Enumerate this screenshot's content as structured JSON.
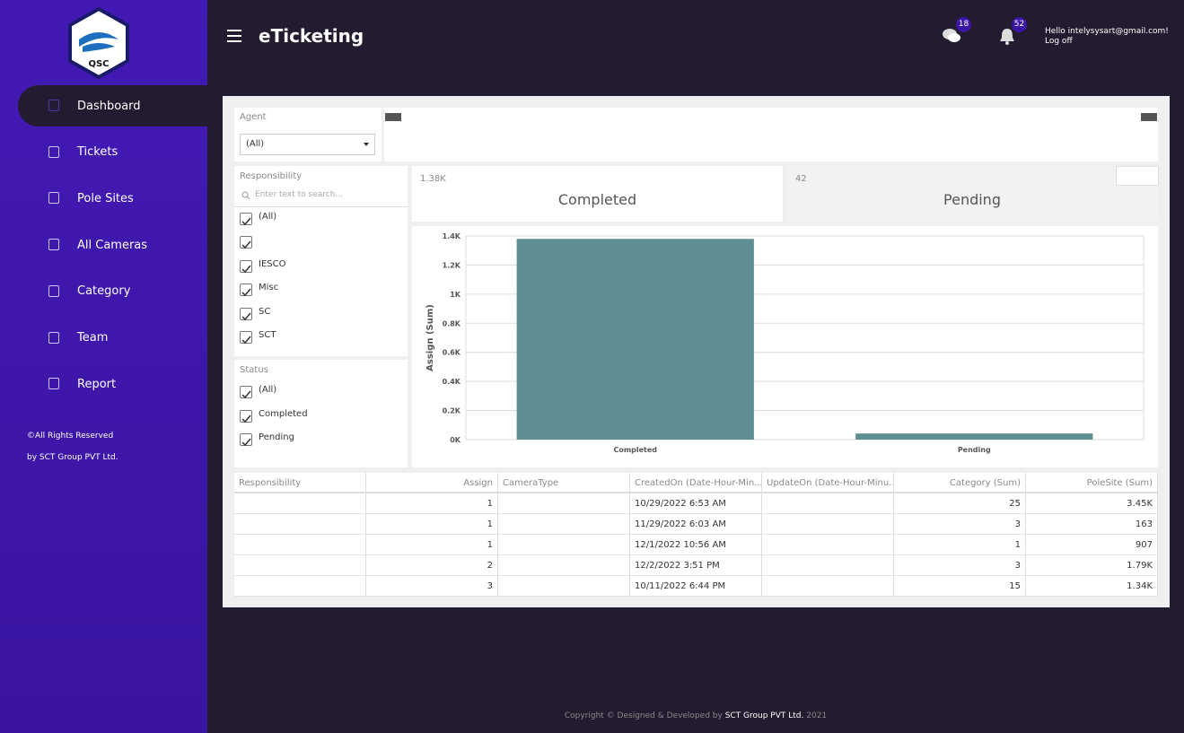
{
  "logo": "QSC",
  "sidebar": {
    "menu": [
      "Dashboard",
      "Tickets",
      "Pole Sites",
      "All Cameras",
      "Category",
      "Team",
      "Report"
    ],
    "footer": [
      "©All Rights Reserved",
      "by SCT Group PVT Ltd."
    ]
  },
  "header": {
    "title": "eTicketing",
    "messages_badge": 18,
    "notifications_badge": 52,
    "greeting": "Hello intelysysart@gmail.com!",
    "logout": "Log off"
  },
  "filters": {
    "agent": {
      "label": "Agent",
      "value": "(All)"
    },
    "responsibility": {
      "label": "Responsibility",
      "placeholder": "Enter text to search...",
      "options": [
        "(All)",
        null,
        "IESCO",
        "Misc",
        "SC",
        "SCT"
      ]
    },
    "status": {
      "label": "Status",
      "options": [
        "(All)",
        "Completed",
        "Pending"
      ]
    }
  },
  "cards": [
    {
      "value": "1.38K",
      "label": "Completed"
    },
    {
      "value": "42",
      "label": "Pending"
    }
  ],
  "chart_data": {
    "type": "bar",
    "y_label": "Assign (Sum)",
    "categories": [
      "Completed",
      "Pending"
    ],
    "values": [
      1380,
      42
    ],
    "color": "#5f8e92",
    "ylim": [
      0,
      1400
    ],
    "yticks": [
      {
        "value": 0,
        "label": "0K"
      },
      {
        "value": 200,
        "label": "0.2K"
      },
      {
        "value": 400,
        "label": "0.4K"
      },
      {
        "value": 600,
        "label": "0.6K"
      },
      {
        "value": 800,
        "label": "0.8K"
      },
      {
        "value": 1000,
        "label": "1K"
      },
      {
        "value": 1200,
        "label": "1.2K"
      },
      {
        "value": 1400,
        "label": "1.4K"
      }
    ],
    "grid": true
  },
  "table": {
    "columns": [
      "Responsibility",
      "Assign",
      "CameraType",
      "CreatedOn (Date-Hour-Min...",
      "UpdateOn (Date-Hour-Minu...",
      "Category (Sum)",
      "PoleSite (Sum)"
    ],
    "rows": [
      [
        null,
        1,
        null,
        "10/29/2022 6:53 AM",
        null,
        25,
        "3.45K"
      ],
      [
        null,
        1,
        null,
        "11/29/2022 6:03 AM",
        null,
        3,
        "163"
      ],
      [
        null,
        1,
        null,
        "12/1/2022 10:56 AM",
        null,
        1,
        "907"
      ],
      [
        null,
        2,
        null,
        "12/2/2022 3:51 PM",
        null,
        3,
        "1.79K"
      ],
      [
        null,
        3,
        null,
        "10/11/2022 6:44 PM",
        null,
        15,
        "1.34K"
      ]
    ]
  },
  "footer": {
    "text": "Copyright © Designed & Developed by",
    "company": "SCT Group PVT Ltd.",
    "year": "2021"
  }
}
